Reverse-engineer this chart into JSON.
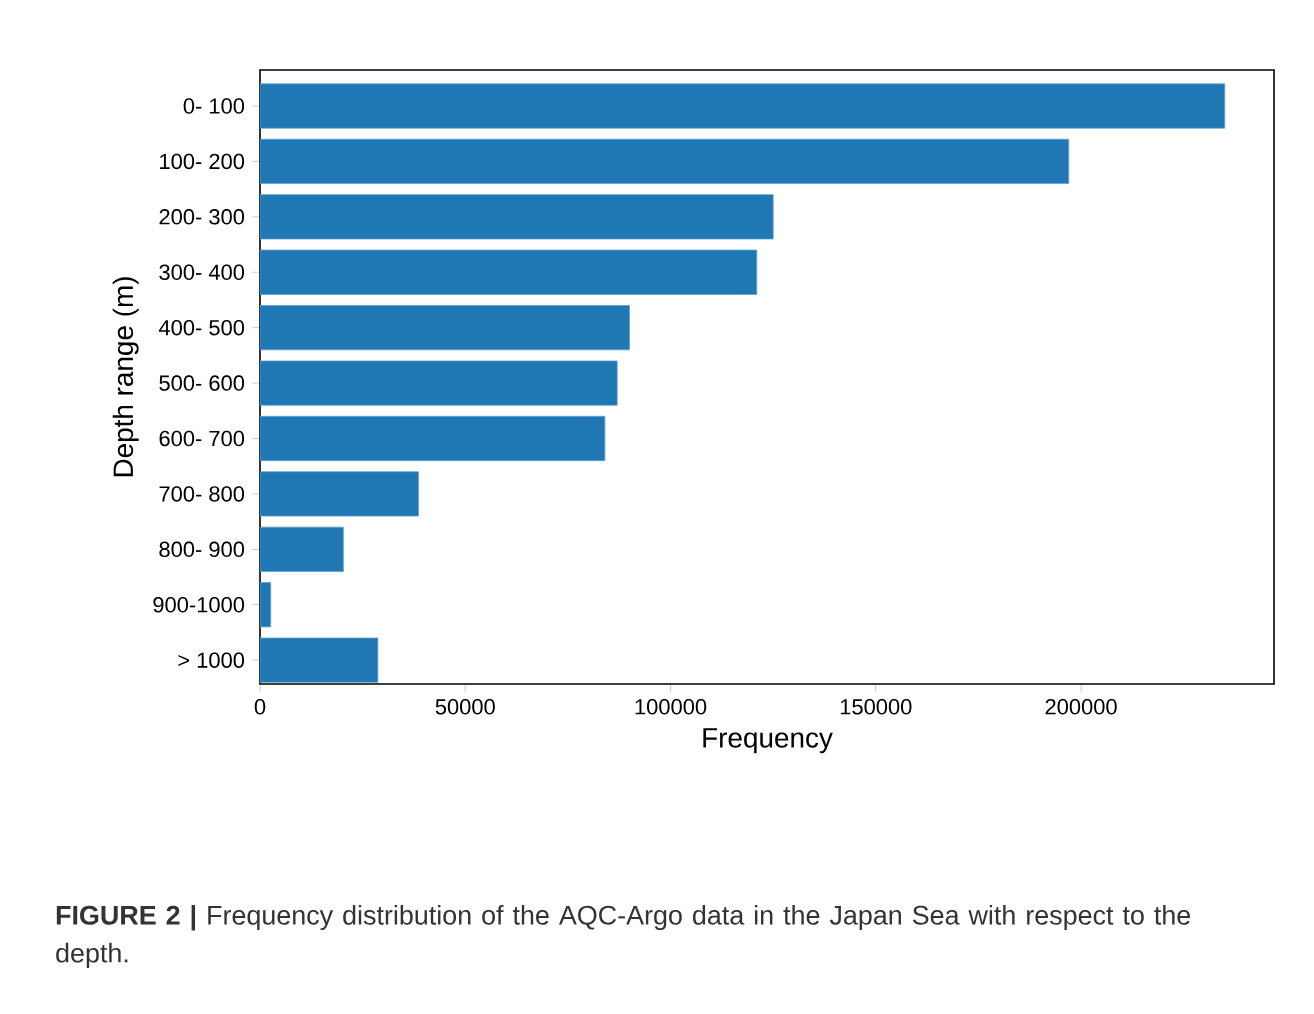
{
  "chart_data": {
    "type": "bar",
    "orientation": "horizontal",
    "xlabel": "Frequency",
    "ylabel": "Depth range (m)",
    "categories": [
      "0- 100",
      "100- 200",
      "200- 300",
      "300- 400",
      "400- 500",
      "500- 600",
      "600- 700",
      "700- 800",
      "800- 900",
      "900-1000",
      "> 1000"
    ],
    "values": [
      235000,
      197000,
      125000,
      121000,
      90000,
      87000,
      84000,
      38600,
      20300,
      2600,
      28700
    ],
    "color": "#1f77b4",
    "xlim": [
      0,
      247000
    ],
    "xticks": [
      0,
      50000,
      100000,
      150000,
      200000
    ],
    "grid": false,
    "annotations": [
      "**FIGURE 2 |** Frequency distribution of the AQC-Argo data in the Japan Sea with respect to the depth."
    ]
  }
}
